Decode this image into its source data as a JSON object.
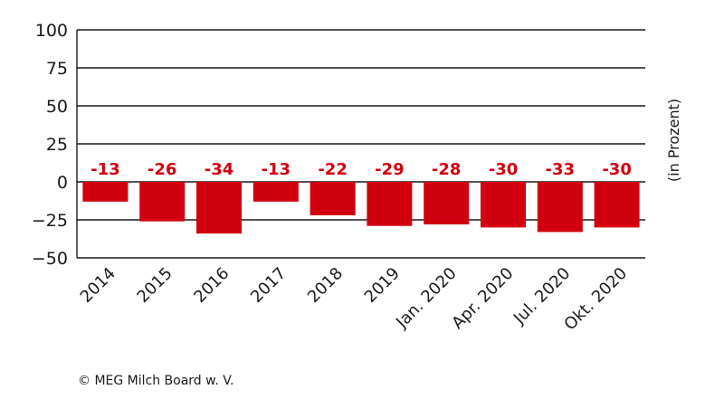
{
  "chart_data": {
    "type": "bar",
    "categories": [
      "2014",
      "2015",
      "2016",
      "2017",
      "2018",
      "2019",
      "Jan. 2020",
      "Apr. 2020",
      "Jul. 2020",
      "Okt. 2020"
    ],
    "values": [
      -13,
      -26,
      -34,
      -13,
      -22,
      -29,
      -28,
      -30,
      -33,
      -30
    ],
    "title": "",
    "xlabel": "",
    "ylabel": "(in Prozent)",
    "ylim": [
      -50,
      100
    ],
    "yticks": [
      100,
      75,
      50,
      25,
      0,
      -25,
      -50
    ],
    "ytick_labels": [
      "100",
      "75",
      "50",
      "25",
      "0",
      "−25",
      "−50"
    ],
    "grid": true,
    "bar_color": "#d2000f",
    "label_color": "#d2000f",
    "axis_color": "#1a1a1a"
  },
  "footer": {
    "source": "© MEG Milch Board w. V."
  }
}
